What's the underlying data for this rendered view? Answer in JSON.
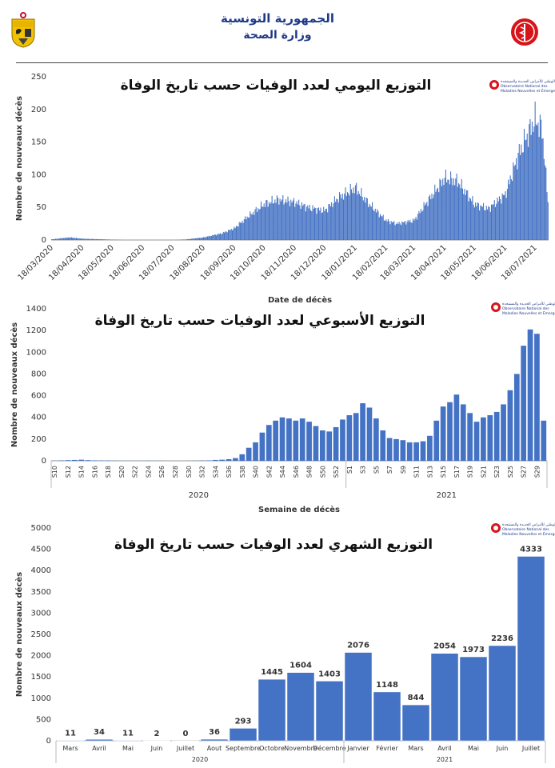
{
  "header": {
    "line1": "الجمهورية التونسية",
    "line2": "وزارة الصحة",
    "crest_icon": "tunisia-coat-of-arms-icon",
    "ministry_logo_icon": "red-caduceus-logo-icon",
    "accent": "#1f3a8a"
  },
  "onmne_logo": {
    "arabic": "المرصد الوطني للأمراض الجديدة والمستجدة",
    "line1": "Observatoire National des",
    "line2": "Maladies Nouvelles et Émergentes"
  },
  "chart_data": [
    {
      "type": "bar",
      "title": "التوزيع اليومي لعدد الوفيات حسب تاريخ الوفاة",
      "xlabel": "Date de décès",
      "ylabel": "Nombre de nouveaux décès",
      "ylim": [
        0,
        250
      ],
      "yticks": [
        0,
        50,
        100,
        150,
        200,
        250
      ],
      "x_start": "18/03/2020",
      "x_end": "31/07/2021",
      "xtick_labels": [
        "18/03/2020",
        "18/04/2020",
        "18/05/2020",
        "18/06/2020",
        "18/07/2020",
        "18/08/2020",
        "18/09/2020",
        "18/10/2020",
        "18/11/2020",
        "18/12/2020",
        "18/01/2021",
        "18/02/2021",
        "18/03/2021",
        "18/04/2021",
        "18/05/2021",
        "18/06/2021",
        "18/07/2021"
      ],
      "color": "#4472c4",
      "series_profile": [
        [
          "18/03/2020",
          1
        ],
        [
          "05/04/2020",
          4
        ],
        [
          "18/04/2020",
          2
        ],
        [
          "10/05/2020",
          1
        ],
        [
          "01/06/2020",
          0
        ],
        [
          "18/07/2020",
          0
        ],
        [
          "01/08/2020",
          1
        ],
        [
          "18/08/2020",
          4
        ],
        [
          "05/09/2020",
          10
        ],
        [
          "18/09/2020",
          18
        ],
        [
          "01/10/2020",
          35
        ],
        [
          "18/10/2020",
          55
        ],
        [
          "01/11/2020",
          62
        ],
        [
          "18/11/2020",
          58
        ],
        [
          "01/12/2020",
          50
        ],
        [
          "18/12/2020",
          45
        ],
        [
          "01/01/2021",
          65
        ],
        [
          "18/01/2021",
          80
        ],
        [
          "01/02/2021",
          55
        ],
        [
          "18/02/2021",
          30
        ],
        [
          "01/03/2021",
          25
        ],
        [
          "18/03/2021",
          30
        ],
        [
          "01/04/2021",
          60
        ],
        [
          "18/04/2021",
          95
        ],
        [
          "01/05/2021",
          90
        ],
        [
          "18/05/2021",
          55
        ],
        [
          "01/06/2021",
          48
        ],
        [
          "18/06/2021",
          70
        ],
        [
          "01/07/2021",
          130
        ],
        [
          "10/07/2021",
          160
        ],
        [
          "18/07/2021",
          185
        ],
        [
          "25/07/2021",
          170
        ],
        [
          "31/07/2021",
          60
        ]
      ]
    },
    {
      "type": "bar",
      "title": "التوزيع الأسبوعي لعدد الوفيات حسب تاريخ الوفاة",
      "xlabel": "Semaine de décès",
      "ylabel": "Nombre de nouveaux décès",
      "ylim": [
        0,
        1400
      ],
      "yticks": [
        0,
        200,
        400,
        600,
        800,
        1000,
        1200,
        1400
      ],
      "years": [
        "2020",
        "2021"
      ],
      "color": "#4472c4",
      "categories": [
        "S10",
        "S11",
        "S12",
        "S13",
        "S14",
        "S15",
        "S16",
        "S17",
        "S18",
        "S19",
        "S20",
        "S21",
        "S22",
        "S23",
        "S24",
        "S25",
        "S26",
        "S27",
        "S28",
        "S29",
        "S30",
        "S31",
        "S32",
        "S33",
        "S34",
        "S35",
        "S36",
        "S37",
        "S38",
        "S39",
        "S40",
        "S41",
        "S42",
        "S43",
        "S44",
        "S45",
        "S46",
        "S47",
        "S48",
        "S49",
        "S50",
        "S51",
        "S52",
        "S53",
        "S1",
        "S2",
        "S3",
        "S4",
        "S5",
        "S6",
        "S7",
        "S8",
        "S9",
        "S10",
        "S11",
        "S12",
        "S13",
        "S14",
        "S15",
        "S16",
        "S17",
        "S18",
        "S19",
        "S20",
        "S21",
        "S22",
        "S23",
        "S24",
        "S25",
        "S26",
        "S27",
        "S28",
        "S29",
        "S30"
      ],
      "tick_labels": [
        "S10",
        "S12",
        "S14",
        "S16",
        "S18",
        "S20",
        "S22",
        "S24",
        "S26",
        "S28",
        "S30",
        "S32",
        "S34",
        "S36",
        "S38",
        "S40",
        "S42",
        "S44",
        "S46",
        "S48",
        "S50",
        "S52",
        "S1",
        "S3",
        "S5",
        "S7",
        "S9",
        "S11",
        "S13",
        "S15",
        "S17",
        "S19",
        "S21",
        "S23",
        "S25",
        "S27",
        "S29"
      ],
      "values": [
        2,
        4,
        6,
        8,
        10,
        6,
        4,
        3,
        3,
        2,
        1,
        1,
        1,
        1,
        2,
        1,
        1,
        0,
        0,
        0,
        1,
        2,
        3,
        4,
        8,
        10,
        15,
        25,
        60,
        120,
        170,
        260,
        330,
        370,
        400,
        390,
        370,
        390,
        360,
        320,
        280,
        270,
        310,
        380,
        420,
        440,
        530,
        490,
        390,
        280,
        210,
        200,
        190,
        170,
        170,
        180,
        230,
        370,
        500,
        540,
        610,
        520,
        440,
        360,
        400,
        420,
        450,
        520,
        650,
        800,
        1060,
        1210,
        1170,
        370
      ]
    },
    {
      "type": "bar",
      "title": "التوزيع الشهري لعدد الوفيات حسب تاريخ الوفاة",
      "xlabel": "",
      "ylabel": "Nombre de nouveaux décès",
      "ylim": [
        0,
        5000
      ],
      "yticks": [
        0,
        500,
        1000,
        1500,
        2000,
        2500,
        3000,
        3500,
        4000,
        4500,
        5000
      ],
      "years": [
        "2020",
        "2021"
      ],
      "color": "#4472c4",
      "categories": [
        "Mars",
        "Avril",
        "Mai",
        "Juin",
        "Juillet",
        "Aout",
        "Septembre",
        "Octobre",
        "Novembre",
        "Décembre",
        "Janvier",
        "Février",
        "Mars",
        "Avril",
        "Mai",
        "Juin",
        "Juillet"
      ],
      "values": [
        11,
        34,
        11,
        2,
        0,
        36,
        293,
        1445,
        1604,
        1403,
        2076,
        1148,
        844,
        2054,
        1973,
        2236,
        4333
      ]
    }
  ]
}
